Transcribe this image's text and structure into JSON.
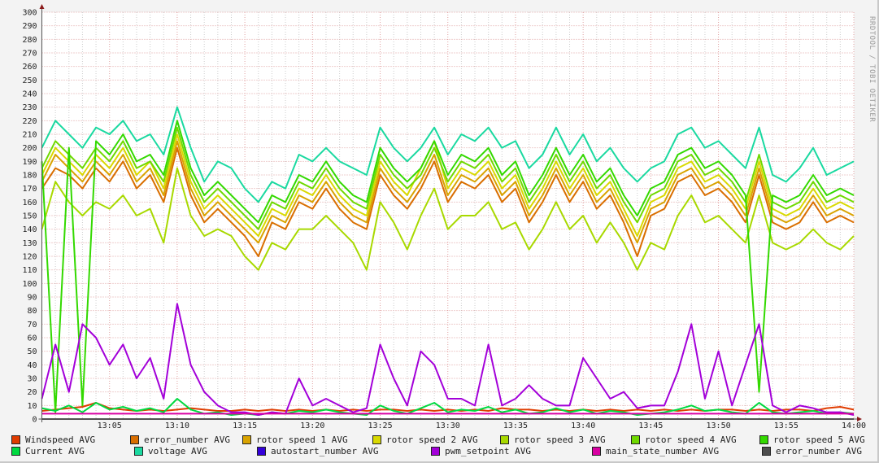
{
  "watermark": "RRDTOOL / TOBI OETIKER",
  "chart_data": {
    "type": "line",
    "title": "",
    "xlabel": "",
    "ylabel": "",
    "ylim": [
      0,
      300
    ],
    "yticks": [
      0,
      10,
      20,
      30,
      40,
      50,
      60,
      70,
      80,
      90,
      100,
      110,
      120,
      130,
      140,
      150,
      160,
      170,
      180,
      190,
      200,
      210,
      220,
      230,
      240,
      250,
      260,
      270,
      280,
      290,
      300
    ],
    "xlim": [
      "13:00",
      "14:00"
    ],
    "xticks": [
      "13:05",
      "13:10",
      "13:15",
      "13:20",
      "13:25",
      "13:30",
      "13:35",
      "13:40",
      "13:45",
      "13:50",
      "13:55",
      "14:00"
    ],
    "x_step_minutes": 1,
    "grid": true,
    "legend_position": "bottom",
    "series": [
      {
        "name": "Windspeed AVG",
        "color": "#e03c00",
        "values": [
          6,
          7,
          8,
          9,
          12,
          8,
          7,
          6,
          7,
          6,
          7,
          8,
          7,
          6,
          6,
          7,
          6,
          7,
          6,
          7,
          6,
          7,
          6,
          7,
          6,
          7,
          7,
          6,
          7,
          6,
          7,
          6,
          7,
          6,
          8,
          7,
          7,
          6,
          7,
          6,
          7,
          6,
          7,
          6,
          7,
          6,
          7,
          6,
          7,
          6,
          7,
          7,
          6,
          7,
          6,
          7,
          7,
          6,
          8,
          9,
          7
        ]
      },
      {
        "name": "error_number AVG",
        "color": "#d96e00",
        "values": [
          170,
          185,
          180,
          170,
          185,
          175,
          190,
          170,
          180,
          160,
          200,
          165,
          145,
          155,
          145,
          135,
          120,
          145,
          140,
          160,
          155,
          170,
          155,
          145,
          140,
          180,
          165,
          155,
          170,
          190,
          160,
          175,
          170,
          180,
          160,
          170,
          145,
          160,
          180,
          160,
          175,
          155,
          165,
          145,
          120,
          150,
          155,
          175,
          180,
          165,
          170,
          160,
          145,
          180,
          145,
          140,
          145,
          160,
          145,
          150,
          145
        ]
      },
      {
        "name": "rotor speed 1 AVG",
        "color": "#d9a300",
        "values": [
          175,
          195,
          185,
          175,
          190,
          180,
          195,
          175,
          185,
          165,
          205,
          170,
          150,
          160,
          150,
          140,
          130,
          150,
          145,
          165,
          160,
          175,
          160,
          150,
          145,
          185,
          170,
          160,
          175,
          195,
          165,
          180,
          175,
          185,
          165,
          175,
          150,
          165,
          185,
          165,
          180,
          160,
          170,
          150,
          130,
          155,
          160,
          180,
          185,
          170,
          175,
          165,
          150,
          185,
          150,
          145,
          150,
          165,
          150,
          155,
          150
        ]
      },
      {
        "name": "rotor speed 2 AVG",
        "color": "#d9d900",
        "values": [
          180,
          200,
          190,
          180,
          195,
          185,
          200,
          180,
          190,
          170,
          210,
          175,
          155,
          165,
          155,
          145,
          135,
          155,
          150,
          170,
          165,
          180,
          165,
          155,
          150,
          190,
          175,
          165,
          185,
          205,
          170,
          185,
          180,
          190,
          170,
          180,
          155,
          170,
          190,
          170,
          185,
          165,
          175,
          155,
          135,
          160,
          165,
          185,
          190,
          175,
          180,
          170,
          155,
          190,
          155,
          150,
          155,
          170,
          155,
          160,
          155
        ]
      },
      {
        "name": "rotor speed 3 AVG",
        "color": "#a8d900",
        "values": [
          140,
          175,
          160,
          150,
          160,
          155,
          165,
          150,
          155,
          130,
          185,
          150,
          135,
          140,
          135,
          120,
          110,
          130,
          125,
          140,
          140,
          150,
          140,
          130,
          110,
          160,
          145,
          125,
          150,
          170,
          140,
          150,
          150,
          160,
          140,
          145,
          125,
          140,
          160,
          140,
          150,
          130,
          145,
          130,
          110,
          130,
          125,
          150,
          165,
          145,
          150,
          140,
          130,
          165,
          130,
          125,
          130,
          140,
          130,
          125,
          135
        ]
      },
      {
        "name": "rotor speed 4 AVG",
        "color": "#6fd900",
        "values": [
          185,
          205,
          195,
          185,
          200,
          190,
          205,
          185,
          190,
          175,
          215,
          180,
          160,
          170,
          160,
          150,
          140,
          160,
          155,
          175,
          170,
          185,
          170,
          160,
          155,
          195,
          180,
          170,
          180,
          200,
          175,
          190,
          185,
          195,
          175,
          185,
          160,
          175,
          195,
          175,
          190,
          170,
          180,
          160,
          145,
          165,
          170,
          190,
          195,
          180,
          185,
          175,
          160,
          195,
          160,
          155,
          160,
          175,
          160,
          165,
          160
        ]
      },
      {
        "name": "rotor speed 5 AVG",
        "color": "#33d900",
        "values": [
          190,
          5,
          200,
          10,
          205,
          195,
          210,
          190,
          195,
          180,
          220,
          185,
          165,
          175,
          165,
          155,
          145,
          165,
          160,
          180,
          175,
          190,
          175,
          165,
          160,
          200,
          185,
          175,
          185,
          205,
          180,
          195,
          190,
          200,
          180,
          190,
          165,
          180,
          200,
          180,
          195,
          175,
          185,
          165,
          150,
          170,
          175,
          195,
          200,
          185,
          190,
          180,
          165,
          20,
          165,
          160,
          165,
          180,
          165,
          170,
          165
        ]
      },
      {
        "name": "Current AVG",
        "color": "#00d940",
        "values": [
          8,
          6,
          10,
          5,
          12,
          7,
          9,
          6,
          8,
          5,
          15,
          7,
          4,
          5,
          3,
          4,
          3,
          5,
          4,
          6,
          5,
          7,
          5,
          4,
          3,
          10,
          6,
          4,
          8,
          12,
          5,
          7,
          6,
          9,
          5,
          7,
          4,
          5,
          8,
          5,
          7,
          4,
          6,
          5,
          3,
          4,
          5,
          7,
          10,
          6,
          7,
          5,
          4,
          12,
          5,
          4,
          5,
          6,
          4,
          5,
          4
        ]
      },
      {
        "name": "voltage AVG",
        "color": "#1ad9a0",
        "values": [
          200,
          220,
          210,
          200,
          215,
          210,
          220,
          205,
          210,
          195,
          230,
          200,
          175,
          190,
          185,
          170,
          160,
          175,
          170,
          195,
          190,
          200,
          190,
          185,
          180,
          215,
          200,
          190,
          200,
          215,
          195,
          210,
          205,
          215,
          200,
          205,
          185,
          195,
          215,
          195,
          210,
          190,
          200,
          185,
          175,
          185,
          190,
          210,
          215,
          200,
          205,
          195,
          185,
          215,
          180,
          175,
          185,
          200,
          180,
          185,
          190
        ]
      },
      {
        "name": "autostart_number AVG",
        "color": "#3300d9",
        "values": [
          0,
          0,
          0,
          0,
          0,
          0,
          0,
          0,
          0,
          0,
          0,
          0,
          0,
          0,
          0,
          0,
          0,
          0,
          0,
          0,
          0,
          0,
          0,
          0,
          0,
          0,
          0,
          0,
          0,
          0,
          0,
          0,
          0,
          0,
          0,
          0,
          0,
          0,
          0,
          0,
          0,
          0,
          0,
          0,
          0,
          0,
          0,
          0,
          0,
          0,
          0,
          0,
          0,
          0,
          0,
          0,
          0,
          0,
          0,
          0,
          0
        ]
      },
      {
        "name": "pwm_setpoint AVG",
        "color": "#a300d9",
        "values": [
          15,
          55,
          20,
          70,
          60,
          40,
          55,
          30,
          45,
          15,
          85,
          40,
          20,
          10,
          5,
          5,
          3,
          5,
          4,
          30,
          10,
          15,
          10,
          5,
          8,
          55,
          30,
          10,
          50,
          40,
          15,
          15,
          10,
          55,
          10,
          15,
          25,
          15,
          10,
          10,
          45,
          30,
          15,
          20,
          8,
          10,
          10,
          35,
          70,
          15,
          50,
          10,
          40,
          70,
          10,
          5,
          10,
          8,
          5,
          5,
          3
        ]
      },
      {
        "name": "main_state_number AVG",
        "color": "#d900a3",
        "values": [
          4,
          4,
          4,
          4,
          4,
          4,
          4,
          4,
          4,
          4,
          4,
          4,
          4,
          4,
          4,
          4,
          4,
          4,
          4,
          4,
          4,
          4,
          4,
          4,
          4,
          4,
          4,
          4,
          4,
          4,
          4,
          4,
          4,
          4,
          4,
          4,
          4,
          4,
          4,
          4,
          4,
          4,
          4,
          4,
          4,
          4,
          4,
          4,
          4,
          4,
          4,
          4,
          4,
          4,
          4,
          4,
          4,
          4,
          4,
          4,
          4
        ]
      },
      {
        "name": "error_number AVG",
        "color": "#4d4d4d",
        "values": [
          0,
          0,
          0,
          0,
          0,
          0,
          0,
          0,
          0,
          0,
          0,
          0,
          0,
          0,
          0,
          0,
          0,
          0,
          0,
          0,
          0,
          0,
          0,
          0,
          0,
          0,
          0,
          0,
          0,
          0,
          0,
          0,
          0,
          0,
          0,
          0,
          0,
          0,
          0,
          0,
          0,
          0,
          0,
          0,
          0,
          0,
          0,
          0,
          0,
          0,
          0,
          0,
          0,
          0,
          0,
          0,
          0,
          0,
          0,
          0,
          0
        ]
      }
    ]
  }
}
